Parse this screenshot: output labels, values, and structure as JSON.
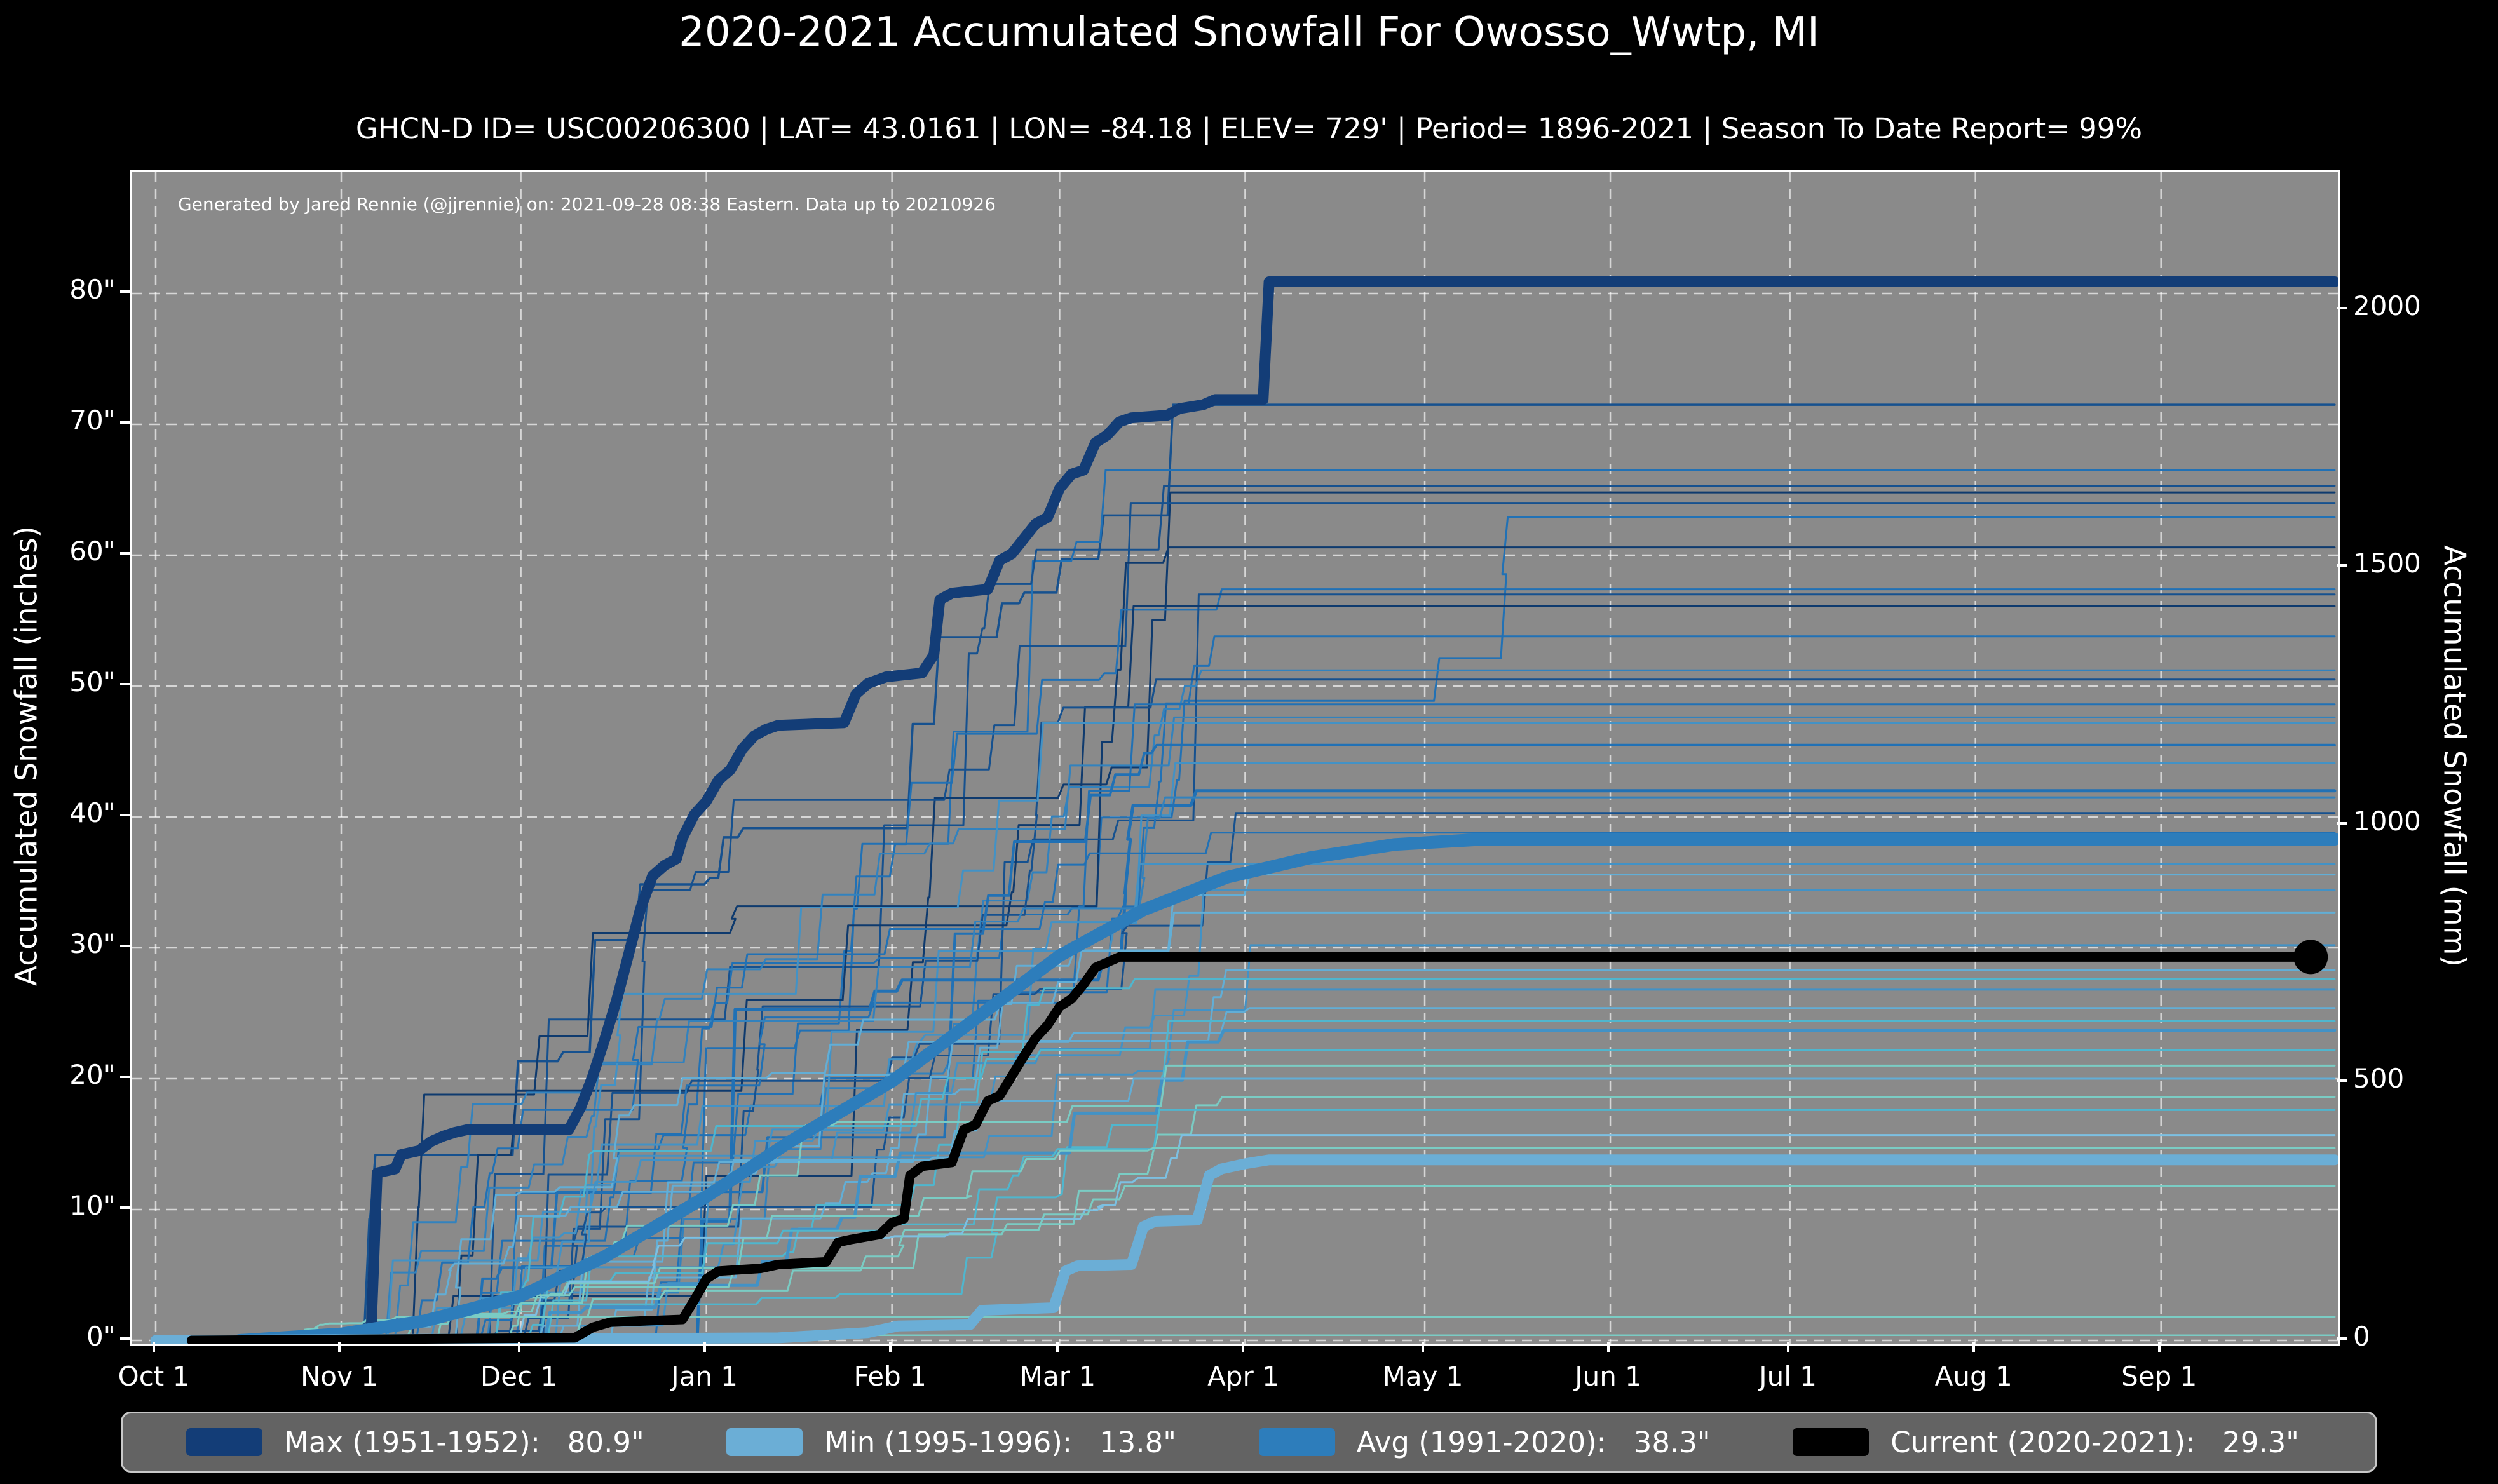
{
  "title": "2020-2021 Accumulated Snowfall For Owosso_Wwtp, MI",
  "subtitle": "GHCN-D ID= USC00206300 | LAT= 43.0161 | LON= -84.18 | ELEV= 729' | Period= 1896-2021 | Season To Date Report= 99%",
  "annotation": "Generated by Jared Rennie (@jjrennie) on: 2021-09-28 08:38 Eastern. Data up to 20210926",
  "colors": {
    "figure_bg": "#000000",
    "plot_bg": "#8a8a8a",
    "grid": "rgba(255,255,255,0.65)",
    "spine": "#ffffff",
    "max": "#133d77",
    "min": "#6baed6",
    "avg": "#2d7dbb",
    "current": "#000000",
    "year_palette": [
      "#0e3a6e",
      "#16518f",
      "#2171b5",
      "#3282be",
      "#4292c6",
      "#62aed6",
      "#7cc0e2",
      "#4fb6ce",
      "#7accc4"
    ]
  },
  "axes": {
    "y_left": {
      "label": "Accumulated Snowfall (inches)",
      "ticks": [
        {
          "v": 0,
          "label": "0\""
        },
        {
          "v": 10,
          "label": "10\""
        },
        {
          "v": 20,
          "label": "20\""
        },
        {
          "v": 30,
          "label": "30\""
        },
        {
          "v": 40,
          "label": "40\""
        },
        {
          "v": 50,
          "label": "50\""
        },
        {
          "v": 60,
          "label": "60\""
        },
        {
          "v": 70,
          "label": "70\""
        },
        {
          "v": 80,
          "label": "80\""
        }
      ]
    },
    "y_right": {
      "label": "Accumulated Snowfall (mm)",
      "ticks": [
        {
          "v": 0,
          "label": "0"
        },
        {
          "v": 500,
          "label": "500"
        },
        {
          "v": 1000,
          "label": "1000"
        },
        {
          "v": 1500,
          "label": "1500"
        },
        {
          "v": 2000,
          "label": "2000"
        }
      ]
    },
    "x": {
      "ticks": [
        {
          "day": 0,
          "label": "Oct 1"
        },
        {
          "day": 31,
          "label": "Nov 1"
        },
        {
          "day": 61,
          "label": "Dec 1"
        },
        {
          "day": 92,
          "label": "Jan 1"
        },
        {
          "day": 123,
          "label": "Feb 1"
        },
        {
          "day": 151,
          "label": "Mar 1"
        },
        {
          "day": 182,
          "label": "Apr 1"
        },
        {
          "day": 212,
          "label": "May 1"
        },
        {
          "day": 243,
          "label": "Jun 1"
        },
        {
          "day": 273,
          "label": "Jul 1"
        },
        {
          "day": 304,
          "label": "Aug 1"
        },
        {
          "day": 335,
          "label": "Sep 1"
        }
      ]
    }
  },
  "legend": {
    "entries": [
      {
        "key": "max",
        "label": "Max (1951-1952):   80.9\"",
        "color": "#133d77"
      },
      {
        "key": "min",
        "label": "Min (1995-1996):   13.8\"",
        "color": "#6baed6"
      },
      {
        "key": "avg",
        "label": "Avg (1991-2020):   38.3\"",
        "color": "#2d7dbb"
      },
      {
        "key": "current",
        "label": "Current (2020-2021):   29.3\"",
        "color": "#000000"
      }
    ]
  },
  "chart_data": {
    "type": "line",
    "x_axis": "days since Oct 1 (snow season Oct 1 - Sep 30)",
    "ylim_inches": [
      0,
      88
    ],
    "ylim_mm": [
      0,
      2235
    ],
    "grid": "dashed white, months vertical / 10-inch horizontal",
    "legend_position": "bottom bar",
    "series": [
      {
        "name": "Max (1951-1952)",
        "final_inches": 80.9,
        "color": "#133d77",
        "lw": 17,
        "points": [
          [
            0,
            0
          ],
          [
            27,
            0
          ],
          [
            29,
            0.4
          ],
          [
            35,
            0.7
          ],
          [
            36,
            0.8
          ],
          [
            37,
            12.8
          ],
          [
            40,
            13.1
          ],
          [
            41,
            14.2
          ],
          [
            44,
            14.5
          ],
          [
            46,
            15.2
          ],
          [
            48,
            15.6
          ],
          [
            50,
            15.9
          ],
          [
            52,
            16.1
          ],
          [
            69,
            16.1
          ],
          [
            71,
            17.8
          ],
          [
            73,
            20.2
          ],
          [
            75,
            23.0
          ],
          [
            77,
            26.0
          ],
          [
            79,
            29.5
          ],
          [
            81,
            33.0
          ],
          [
            83,
            35.5
          ],
          [
            85,
            36.3
          ],
          [
            87,
            36.8
          ],
          [
            88,
            38.4
          ],
          [
            90,
            40.2
          ],
          [
            92,
            41.2
          ],
          [
            94,
            42.8
          ],
          [
            96,
            43.6
          ],
          [
            98,
            45.2
          ],
          [
            100,
            46.2
          ],
          [
            102,
            46.7
          ],
          [
            104,
            47.0
          ],
          [
            115,
            47.2
          ],
          [
            117,
            49.4
          ],
          [
            119,
            50.2
          ],
          [
            122,
            50.7
          ],
          [
            128,
            51.0
          ],
          [
            130,
            52.4
          ],
          [
            131,
            56.6
          ],
          [
            133,
            57.1
          ],
          [
            139,
            57.4
          ],
          [
            141,
            59.6
          ],
          [
            143,
            60.1
          ],
          [
            147,
            62.4
          ],
          [
            149,
            62.9
          ],
          [
            151,
            65.1
          ],
          [
            153,
            66.2
          ],
          [
            155,
            66.5
          ],
          [
            157,
            68.6
          ],
          [
            159,
            69.2
          ],
          [
            161,
            70.2
          ],
          [
            163,
            70.5
          ],
          [
            169,
            70.7
          ],
          [
            171,
            71.2
          ],
          [
            175,
            71.5
          ],
          [
            177,
            71.9
          ],
          [
            185,
            71.9
          ],
          [
            186,
            80.9
          ],
          [
            364,
            80.9
          ]
        ]
      },
      {
        "name": "Avg (1991-2020)",
        "final_inches": 38.3,
        "color": "#2d7dbb",
        "lw": 20,
        "points": [
          [
            14,
            0
          ],
          [
            31,
            0.5
          ],
          [
            45,
            1.5
          ],
          [
            61,
            3.4
          ],
          [
            75,
            6.4
          ],
          [
            92,
            11.0
          ],
          [
            106,
            15.2
          ],
          [
            123,
            19.8
          ],
          [
            137,
            24.6
          ],
          [
            151,
            29.4
          ],
          [
            165,
            32.9
          ],
          [
            179,
            35.4
          ],
          [
            193,
            36.9
          ],
          [
            207,
            37.9
          ],
          [
            222,
            38.3
          ],
          [
            364,
            38.3
          ]
        ]
      },
      {
        "name": "Min (1995-1996)",
        "final_inches": 13.8,
        "color": "#6baed6",
        "lw": 17,
        "points": [
          [
            0,
            0
          ],
          [
            104,
            0.2
          ],
          [
            119,
            0.6
          ],
          [
            124,
            1.1
          ],
          [
            136,
            1.2
          ],
          [
            138,
            2.3
          ],
          [
            150,
            2.5
          ],
          [
            152,
            5.3
          ],
          [
            154,
            5.7
          ],
          [
            163,
            5.8
          ],
          [
            165,
            8.7
          ],
          [
            167,
            9.1
          ],
          [
            174,
            9.2
          ],
          [
            176,
            12.6
          ],
          [
            178,
            13.1
          ],
          [
            182,
            13.5
          ],
          [
            186,
            13.8
          ],
          [
            364,
            13.8
          ]
        ]
      },
      {
        "name": "Current (2020-2021)",
        "final_inches": 29.3,
        "color": "#000000",
        "lw": 15,
        "end_day": 360,
        "end_marker_r": 27,
        "points": [
          [
            6,
            0
          ],
          [
            70,
            0.2
          ],
          [
            73,
            1.0
          ],
          [
            76,
            1.4
          ],
          [
            88,
            1.6
          ],
          [
            90,
            3.1
          ],
          [
            92,
            4.7
          ],
          [
            94,
            5.3
          ],
          [
            101,
            5.5
          ],
          [
            104,
            5.8
          ],
          [
            112,
            6.0
          ],
          [
            114,
            7.5
          ],
          [
            116,
            7.7
          ],
          [
            121,
            8.1
          ],
          [
            123,
            9.0
          ],
          [
            125,
            9.3
          ],
          [
            126,
            12.6
          ],
          [
            128,
            13.3
          ],
          [
            133,
            13.6
          ],
          [
            135,
            16.1
          ],
          [
            137,
            16.5
          ],
          [
            139,
            18.3
          ],
          [
            141,
            18.7
          ],
          [
            143,
            20.2
          ],
          [
            145,
            21.7
          ],
          [
            147,
            23.1
          ],
          [
            149,
            24.1
          ],
          [
            151,
            25.5
          ],
          [
            153,
            26.1
          ],
          [
            155,
            27.2
          ],
          [
            157,
            28.5
          ],
          [
            159,
            28.9
          ],
          [
            161,
            29.3
          ],
          [
            360,
            29.3
          ]
        ]
      }
    ],
    "background_years_note": "unlabeled historical season traces (1896-2021); fields = [final_inches, palette_index, line_width, rise_start_day, plateau_day, seed]; intra-season steps procedurally generated",
    "background_years": [
      [
        71.5,
        1,
        3.5,
        34,
        170,
        11
      ],
      [
        66.5,
        2,
        3,
        40,
        178,
        12
      ],
      [
        65.3,
        1,
        3,
        36,
        182,
        13
      ],
      [
        64.8,
        0,
        3,
        45,
        175,
        14
      ],
      [
        64.0,
        1,
        3,
        50,
        168,
        15
      ],
      [
        62.9,
        2,
        3,
        42,
        226,
        16
      ],
      [
        60.6,
        0,
        3,
        38,
        172,
        17
      ],
      [
        57.4,
        2,
        3,
        46,
        180,
        18
      ],
      [
        57.0,
        1,
        3,
        52,
        176,
        19
      ],
      [
        56.1,
        0,
        3,
        44,
        170,
        20
      ],
      [
        53.8,
        2,
        3,
        40,
        184,
        21
      ],
      [
        51.2,
        3,
        3,
        55,
        178,
        22
      ],
      [
        50.5,
        1,
        3,
        35,
        174,
        23
      ],
      [
        48.6,
        2,
        3,
        48,
        186,
        24
      ],
      [
        47.6,
        3,
        3,
        30,
        170,
        25
      ],
      [
        47.2,
        4,
        3,
        58,
        182,
        26
      ],
      [
        45.5,
        2,
        4,
        44,
        176,
        27
      ],
      [
        44.1,
        4,
        3,
        50,
        172,
        28
      ],
      [
        42.0,
        2,
        5,
        46,
        180,
        29
      ],
      [
        41.5,
        3,
        3,
        38,
        168,
        30
      ],
      [
        40.3,
        1,
        3,
        54,
        186,
        31
      ],
      [
        38.8,
        2,
        3,
        42,
        178,
        32
      ],
      [
        36.4,
        4,
        3,
        36,
        174,
        33
      ],
      [
        35.6,
        5,
        3,
        48,
        182,
        34
      ],
      [
        34.4,
        4,
        3,
        52,
        176,
        35
      ],
      [
        32.7,
        5,
        3,
        44,
        170,
        36
      ],
      [
        30.2,
        4,
        3,
        40,
        184,
        37
      ],
      [
        28.3,
        5,
        3,
        56,
        178,
        38
      ],
      [
        27.6,
        7,
        3,
        46,
        172,
        39
      ],
      [
        26.8,
        4,
        3,
        34,
        176,
        40
      ],
      [
        25.4,
        5,
        3,
        50,
        182,
        41
      ],
      [
        24.4,
        7,
        3,
        42,
        174,
        42
      ],
      [
        23.7,
        4,
        5,
        38,
        180,
        43
      ],
      [
        22.2,
        7,
        3,
        54,
        176,
        44
      ],
      [
        21.0,
        8,
        3,
        46,
        170,
        45
      ],
      [
        20.0,
        5,
        3,
        32,
        178,
        46
      ],
      [
        18.6,
        8,
        3,
        48,
        182,
        47
      ],
      [
        17.6,
        7,
        3,
        44,
        174,
        48
      ],
      [
        15.7,
        6,
        3,
        52,
        180,
        49
      ],
      [
        14.7,
        8,
        3,
        40,
        172,
        50
      ],
      [
        11.8,
        8,
        3,
        58,
        176,
        51
      ],
      [
        1.8,
        8,
        3,
        12,
        40,
        52
      ],
      [
        0.4,
        8,
        2.5,
        20,
        30,
        53
      ]
    ]
  }
}
